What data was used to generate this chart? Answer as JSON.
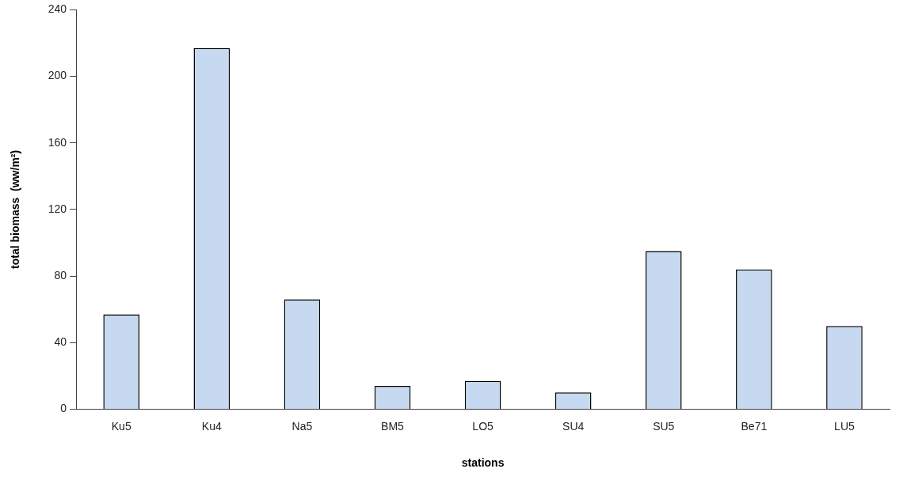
{
  "chart_data": {
    "type": "bar",
    "xlabel": "stations",
    "ylabel": "total biomass  (ww/m²)",
    "categories": [
      "Ku5",
      "Ku4",
      "Na5",
      "BM5",
      "LO5",
      "SU4",
      "SU5",
      "Be71",
      "LU5"
    ],
    "values": [
      57,
      217,
      66,
      14,
      17,
      10,
      95,
      84,
      50
    ],
    "color": "#c6d9f0",
    "ylim": [
      0,
      240
    ],
    "yticks": [
      0,
      40,
      80,
      120,
      160,
      200,
      240
    ],
    "grid": false,
    "legend": false
  }
}
